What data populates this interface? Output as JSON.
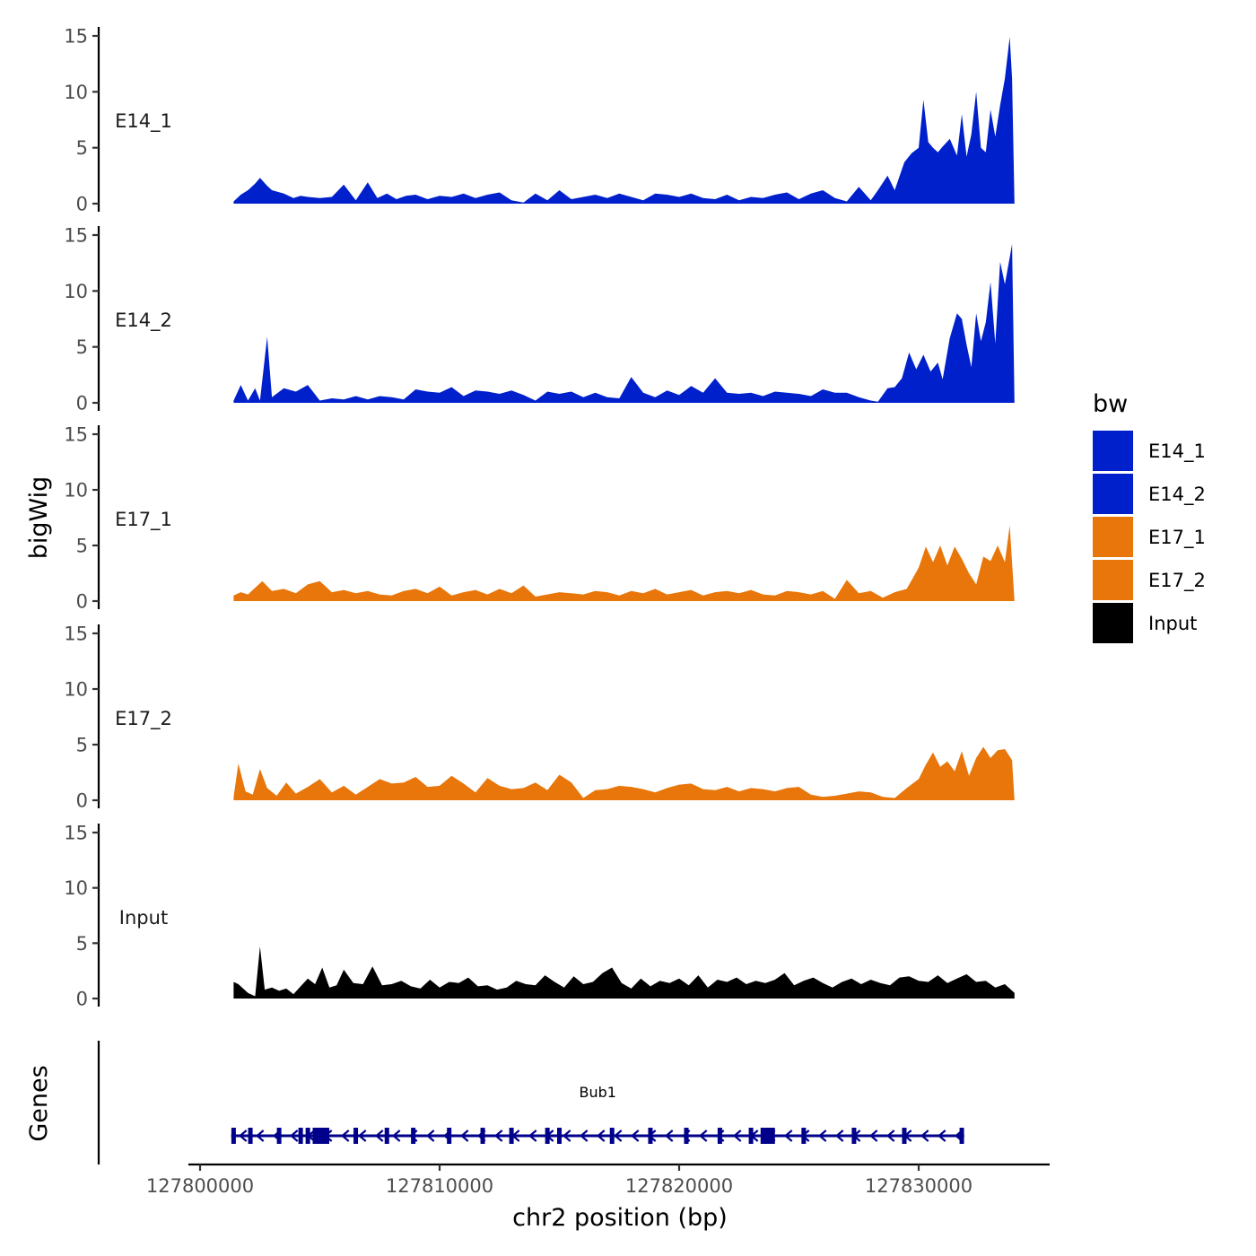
{
  "chart_data": {
    "type": "area",
    "title": "",
    "xlabel": "chr2 position (bp)",
    "ylabel": "bigWig",
    "genes_axis_label": "Genes",
    "xlim": [
      127799800,
      127835500
    ],
    "ylim": [
      0,
      15
    ],
    "y_ticks": [
      0,
      5,
      10,
      15
    ],
    "x_ticks": [
      127800000,
      127810000,
      127820000,
      127830000
    ],
    "x_tick_labels": [
      "127800000",
      "127810000",
      "127820000",
      "127830000"
    ],
    "legend": {
      "title": "bw",
      "position": "right",
      "entries": [
        {
          "label": "E14_1",
          "color": "#0020CC"
        },
        {
          "label": "E14_2",
          "color": "#0020CC"
        },
        {
          "label": "E17_1",
          "color": "#E8760A"
        },
        {
          "label": "E17_2",
          "color": "#E8760A"
        },
        {
          "label": "Input",
          "color": "#000000"
        }
      ]
    },
    "series": [
      {
        "name": "E14_1",
        "label": "E14_1",
        "color": "#0020CC",
        "x": [
          127801400,
          127801700,
          127802000,
          127802300,
          127802500,
          127802800,
          127803000,
          127803500,
          127803900,
          127804200,
          127804500,
          127805000,
          127805500,
          127806000,
          127806500,
          127807000,
          127807400,
          127807800,
          127808200,
          127808600,
          127809000,
          127809500,
          127810000,
          127810500,
          127811000,
          127811500,
          127812000,
          127812500,
          127813000,
          127813500,
          127814000,
          127814500,
          127815000,
          127815500,
          127816000,
          127816500,
          127817000,
          127817500,
          127818000,
          127818500,
          127819000,
          127819500,
          127820000,
          127820500,
          127821000,
          127821500,
          127822000,
          127822500,
          127823000,
          127823500,
          127824000,
          127824500,
          127825000,
          127825500,
          127826000,
          127826500,
          127827000,
          127827500,
          127828000,
          127828300,
          127828700,
          127829000,
          127829400,
          127829700,
          127830000,
          127830200,
          127830400,
          127830600,
          127830800,
          127831000,
          127831300,
          127831600,
          127831800,
          127832000,
          127832200,
          127832400,
          127832600,
          127832800,
          127833000,
          127833200,
          127833400,
          127833600,
          127833800,
          127833900,
          127834000
        ],
        "y": [
          0.2,
          0.8,
          1.2,
          1.8,
          2.3,
          1.6,
          1.2,
          0.9,
          0.5,
          0.7,
          0.6,
          0.5,
          0.6,
          1.7,
          0.3,
          1.9,
          0.5,
          0.9,
          0.4,
          0.7,
          0.8,
          0.4,
          0.7,
          0.6,
          0.9,
          0.5,
          0.8,
          1.0,
          0.3,
          0.1,
          0.9,
          0.3,
          1.2,
          0.4,
          0.6,
          0.8,
          0.5,
          0.9,
          0.6,
          0.3,
          0.9,
          0.8,
          0.6,
          0.9,
          0.5,
          0.4,
          0.8,
          0.3,
          0.6,
          0.5,
          0.8,
          1.0,
          0.4,
          0.9,
          1.2,
          0.5,
          0.2,
          1.5,
          0.3,
          1.2,
          2.5,
          1.2,
          3.7,
          4.5,
          5.0,
          9.3,
          5.5,
          5.0,
          4.6,
          5.1,
          5.8,
          4.3,
          8.0,
          4.2,
          6.2,
          10.0,
          5.0,
          4.6,
          8.4,
          6.0,
          8.8,
          11.2,
          14.9,
          11.2,
          0
        ],
        "label_pos": "top-left"
      },
      {
        "name": "E14_2",
        "label": "E14_2",
        "color": "#0020CC",
        "x": [
          127801400,
          127801700,
          127802000,
          127802300,
          127802500,
          127802800,
          127803000,
          127803500,
          127804000,
          127804500,
          127805000,
          127805500,
          127806000,
          127806500,
          127807000,
          127807500,
          127808000,
          127808500,
          127809000,
          127809500,
          127810000,
          127810500,
          127811000,
          127811500,
          127812000,
          127812500,
          127813000,
          127813500,
          127814000,
          127814500,
          127815000,
          127815500,
          127816000,
          127816500,
          127817000,
          127817500,
          127818000,
          127818500,
          127819000,
          127819500,
          127820000,
          127820500,
          127821000,
          127821500,
          127822000,
          127822500,
          127823000,
          127823500,
          127824000,
          127824500,
          127825000,
          127825500,
          127826000,
          127826500,
          127827000,
          127827500,
          127828000,
          127828300,
          127828700,
          127829000,
          127829300,
          127829600,
          127829900,
          127830200,
          127830500,
          127830800,
          127831000,
          127831300,
          127831600,
          127831800,
          127832000,
          127832200,
          127832400,
          127832600,
          127832800,
          127833000,
          127833200,
          127833400,
          127833600,
          127833800,
          127833900,
          127834000
        ],
        "y": [
          0.2,
          1.6,
          0.2,
          1.3,
          0.2,
          5.9,
          0.5,
          1.3,
          1.0,
          1.6,
          0.2,
          0.4,
          0.3,
          0.6,
          0.3,
          0.6,
          0.5,
          0.3,
          1.2,
          1.0,
          0.9,
          1.4,
          0.6,
          1.1,
          1.0,
          0.8,
          1.1,
          0.7,
          0.2,
          1.0,
          0.8,
          1.0,
          0.5,
          0.9,
          0.5,
          0.4,
          2.3,
          0.9,
          0.5,
          1.1,
          0.7,
          1.5,
          0.9,
          2.2,
          0.9,
          0.8,
          0.9,
          0.6,
          1.0,
          0.9,
          0.8,
          0.6,
          1.2,
          0.9,
          0.9,
          0.5,
          0.2,
          0.1,
          1.3,
          1.4,
          2.2,
          4.5,
          3.0,
          4.3,
          2.8,
          3.6,
          2.1,
          5.8,
          8.0,
          7.5,
          5.2,
          3.2,
          8.0,
          5.5,
          7.2,
          10.8,
          5.3,
          12.6,
          10.6,
          13.0,
          14.2,
          0
        ],
        "label_pos": "top-left"
      },
      {
        "name": "E17_1",
        "label": "E17_1",
        "color": "#E8760A",
        "x": [
          127801400,
          127801700,
          127802000,
          127802300,
          127802600,
          127803000,
          127803500,
          127804000,
          127804500,
          127805000,
          127805500,
          127806000,
          127806500,
          127807000,
          127807500,
          127808000,
          127808500,
          127809000,
          127809500,
          127810000,
          127810500,
          127811000,
          127811500,
          127812000,
          127812500,
          127813000,
          127813500,
          127814000,
          127814500,
          127815000,
          127815500,
          127816000,
          127816500,
          127817000,
          127817500,
          127818000,
          127818500,
          127819000,
          127819500,
          127820000,
          127820500,
          127821000,
          127821500,
          127822000,
          127822500,
          127823000,
          127823500,
          127824000,
          127824500,
          127825000,
          127825500,
          127826000,
          127826500,
          127827000,
          127827500,
          127828000,
          127828500,
          127829000,
          127829500,
          127830000,
          127830300,
          127830600,
          127830900,
          127831200,
          127831500,
          127831800,
          127832100,
          127832400,
          127832700,
          127833000,
          127833300,
          127833600,
          127833800,
          127834000
        ],
        "y": [
          0.5,
          0.8,
          0.6,
          1.2,
          1.8,
          0.9,
          1.1,
          0.7,
          1.5,
          1.8,
          0.8,
          1.0,
          0.7,
          0.9,
          0.6,
          0.5,
          0.9,
          1.1,
          0.7,
          1.3,
          0.5,
          0.8,
          1.0,
          0.6,
          1.1,
          0.7,
          1.4,
          0.4,
          0.6,
          0.8,
          0.7,
          0.6,
          0.9,
          0.8,
          0.5,
          0.9,
          0.7,
          1.1,
          0.6,
          0.8,
          1.0,
          0.5,
          0.8,
          0.9,
          0.7,
          1.0,
          0.6,
          0.5,
          0.9,
          0.8,
          0.6,
          0.9,
          0.2,
          1.9,
          0.7,
          0.9,
          0.3,
          0.8,
          1.1,
          3.0,
          4.9,
          3.5,
          5.0,
          3.2,
          4.9,
          3.8,
          2.5,
          1.5,
          4.0,
          3.6,
          5.0,
          3.5,
          6.8,
          0
        ],
        "label_pos": "top-left"
      },
      {
        "name": "E17_2",
        "label": "E17_2",
        "color": "#E8760A",
        "x": [
          127801400,
          127801600,
          127801900,
          127802200,
          127802500,
          127802800,
          127803200,
          127803600,
          127804000,
          127804500,
          127805000,
          127805500,
          127806000,
          127806500,
          127807000,
          127807500,
          127808000,
          127808500,
          127809000,
          127809500,
          127810000,
          127810500,
          127811000,
          127811500,
          127812000,
          127812500,
          127813000,
          127813500,
          127814000,
          127814500,
          127815000,
          127815500,
          127816000,
          127816500,
          127817000,
          127817500,
          127818000,
          127818500,
          127819000,
          127819500,
          127820000,
          127820500,
          127821000,
          127821500,
          127822000,
          127822500,
          127823000,
          127823500,
          127824000,
          127824500,
          127825000,
          127825500,
          127826000,
          127826500,
          127827000,
          127827500,
          127828000,
          127828500,
          127829000,
          127829500,
          127830000,
          127830300,
          127830600,
          127830900,
          127831200,
          127831500,
          127831800,
          127832100,
          127832400,
          127832700,
          127833000,
          127833300,
          127833600,
          127833900,
          127834000
        ],
        "y": [
          0.3,
          3.3,
          0.8,
          0.5,
          2.8,
          1.1,
          0.4,
          1.6,
          0.6,
          1.2,
          1.9,
          0.7,
          1.3,
          0.5,
          1.2,
          1.9,
          1.5,
          1.6,
          2.1,
          1.2,
          1.3,
          2.2,
          1.5,
          0.7,
          2.0,
          1.3,
          1.0,
          1.1,
          1.6,
          0.9,
          2.3,
          1.6,
          0.2,
          0.9,
          1.0,
          1.3,
          1.2,
          1.0,
          0.7,
          1.1,
          1.4,
          1.5,
          1.0,
          0.9,
          1.2,
          0.8,
          1.1,
          1.0,
          0.8,
          1.1,
          1.2,
          0.5,
          0.3,
          0.4,
          0.6,
          0.8,
          0.7,
          0.3,
          0.2,
          1.1,
          1.9,
          3.2,
          4.3,
          3.0,
          3.5,
          2.6,
          4.4,
          2.2,
          3.8,
          4.8,
          3.8,
          4.5,
          4.6,
          3.6,
          0
        ],
        "label_pos": "top-left"
      },
      {
        "name": "Input",
        "label": "Input",
        "color": "#000000",
        "x": [
          127801400,
          127801600,
          127802000,
          127802300,
          127802500,
          127802700,
          127803000,
          127803300,
          127803600,
          127803900,
          127804200,
          127804500,
          127804800,
          127805100,
          127805400,
          127805700,
          127806000,
          127806400,
          127806800,
          127807200,
          127807600,
          127808000,
          127808400,
          127808800,
          127809200,
          127809600,
          127810000,
          127810400,
          127810800,
          127811200,
          127811600,
          127812000,
          127812400,
          127812800,
          127813200,
          127813600,
          127814000,
          127814400,
          127814800,
          127815200,
          127815600,
          127816000,
          127816400,
          127816800,
          127817200,
          127817600,
          127818000,
          127818400,
          127818800,
          127819200,
          127819600,
          127820000,
          127820400,
          127820800,
          127821200,
          127821600,
          127822000,
          127822400,
          127822800,
          127823200,
          127823600,
          127824000,
          127824400,
          127824800,
          127825200,
          127825600,
          127826000,
          127826400,
          127826800,
          127827200,
          127827600,
          127828000,
          127828400,
          127828800,
          127829200,
          127829600,
          127830000,
          127830400,
          127830800,
          127831200,
          127831600,
          127832000,
          127832400,
          127832800,
          127833200,
          127833600,
          127834000
        ],
        "y": [
          1.5,
          1.3,
          0.5,
          0.2,
          4.7,
          0.8,
          1.0,
          0.7,
          0.9,
          0.4,
          1.1,
          1.8,
          1.3,
          2.8,
          1.0,
          1.2,
          2.6,
          1.4,
          1.3,
          2.9,
          1.2,
          1.3,
          1.6,
          1.1,
          0.9,
          1.7,
          1.0,
          1.5,
          1.4,
          1.9,
          1.1,
          1.2,
          0.8,
          1.0,
          1.6,
          1.3,
          1.2,
          2.1,
          1.5,
          1.0,
          2.0,
          1.3,
          1.5,
          2.3,
          2.8,
          1.4,
          0.9,
          1.8,
          1.1,
          1.6,
          1.4,
          1.8,
          1.2,
          2.1,
          1.0,
          1.7,
          1.5,
          1.9,
          1.3,
          1.6,
          1.4,
          1.7,
          2.3,
          1.2,
          1.6,
          1.9,
          1.4,
          1.0,
          1.5,
          1.8,
          1.3,
          1.7,
          1.4,
          1.2,
          1.9,
          2.0,
          1.6,
          1.5,
          2.1,
          1.4,
          1.8,
          2.2,
          1.5,
          1.6,
          1.0,
          1.3,
          0.5
        ],
        "label_pos": "top-left"
      }
    ],
    "genes": [
      {
        "name": "Bub1",
        "strand": "-",
        "start": 127801300,
        "end": 127831900,
        "exons": [
          127801400,
          127802100,
          127803300,
          127804200,
          127804500,
          127804900,
          127805300,
          127806500,
          127807800,
          127808900,
          127810400,
          127811800,
          127813000,
          127814500,
          127815000,
          127817200,
          127818800,
          127820300,
          127821700,
          127823000,
          127823600,
          127825200,
          127827300,
          127829400,
          127831800
        ],
        "big_exons": [
          127805000,
          127823700
        ]
      }
    ]
  }
}
